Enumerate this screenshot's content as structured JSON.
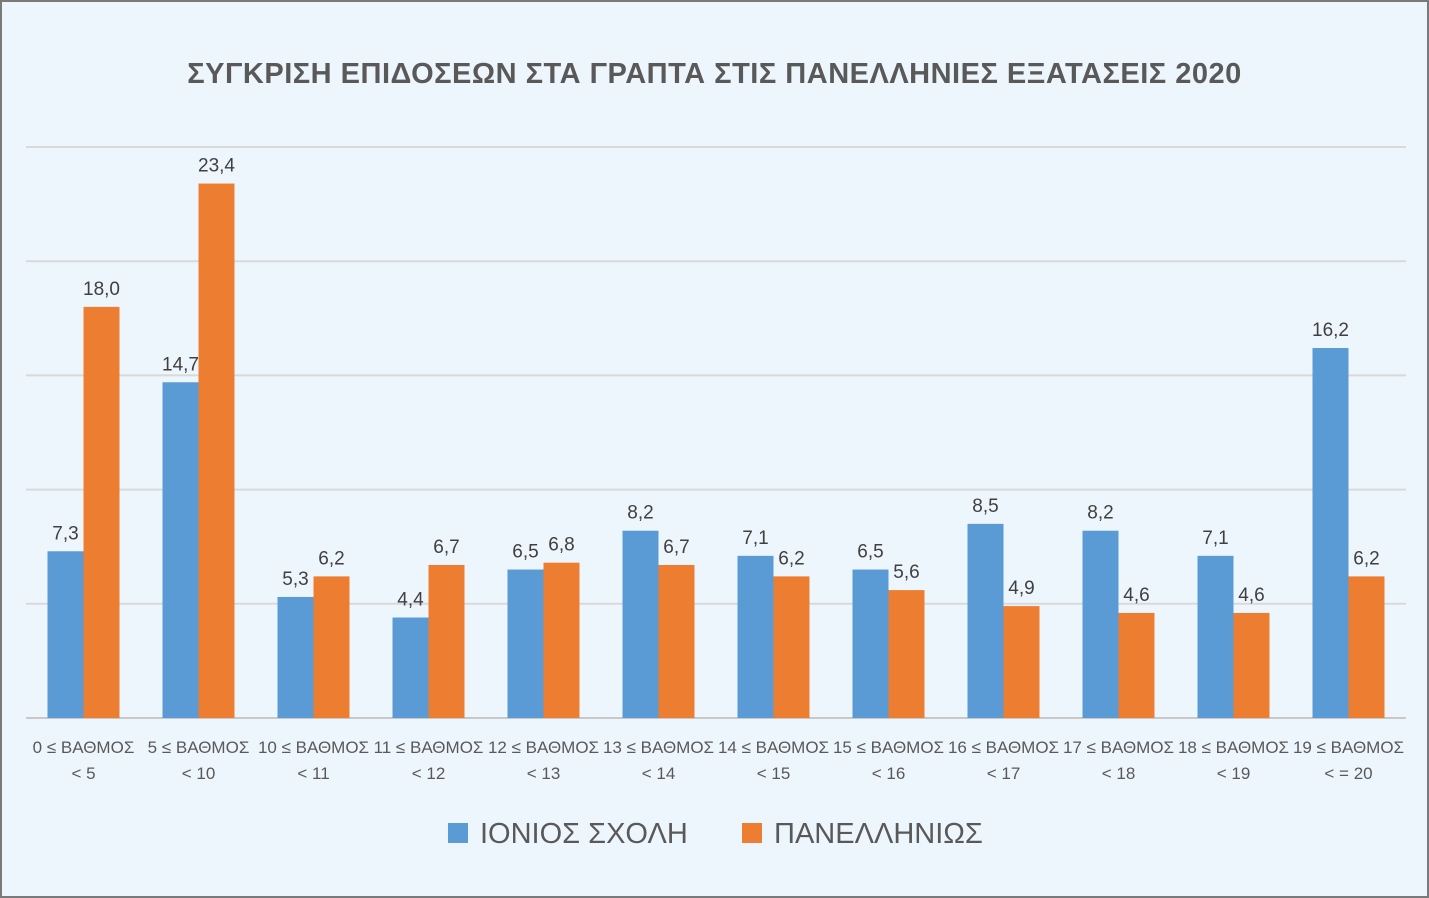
{
  "chart_data": {
    "type": "bar",
    "title": "ΣΥΓΚΡΙΣΗ ΕΠΙΔΟΣΕΩΝ ΣΤΑ ΓΡΑΠΤΑ ΣΤΙΣ ΠΑΝΕΛΛΗΝΙΕΣ ΕΞΑΤΑΣΕΙΣ 2020",
    "xlabel": "",
    "ylabel": "",
    "ylim": [
      0,
      25
    ],
    "grid": true,
    "legend": "bottom",
    "categories": [
      [
        "0 ≤ ΒΑΘΜΟΣ",
        "< 5"
      ],
      [
        "5 ≤ ΒΑΘΜΟΣ",
        "< 10"
      ],
      [
        "10 ≤ ΒΑΘΜΟΣ",
        "< 11"
      ],
      [
        "11 ≤ ΒΑΘΜΟΣ",
        "< 12"
      ],
      [
        "12 ≤ ΒΑΘΜΟΣ",
        "< 13"
      ],
      [
        "13 ≤ ΒΑΘΜΟΣ",
        "< 14"
      ],
      [
        "14 ≤ ΒΑΘΜΟΣ",
        "< 15"
      ],
      [
        "15 ≤ ΒΑΘΜΟΣ",
        "< 16"
      ],
      [
        "16 ≤ ΒΑΘΜΟΣ",
        "< 17"
      ],
      [
        "17 ≤ ΒΑΘΜΟΣ",
        "< 18"
      ],
      [
        "18 ≤ ΒΑΘΜΟΣ",
        "< 19"
      ],
      [
        "19 ≤ ΒΑΘΜΟΣ",
        "< = 20"
      ]
    ],
    "series": [
      {
        "name": "ΙΟΝΙΟΣ ΣΧΟΛΗ",
        "color": "#5b9bd5",
        "values": [
          7.3,
          14.7,
          5.3,
          4.4,
          6.5,
          8.2,
          7.1,
          6.5,
          8.5,
          8.2,
          7.1,
          16.2
        ],
        "labels": [
          "7,3",
          "14,7",
          "5,3",
          "4,4",
          "6,5",
          "8,2",
          "7,1",
          "6,5",
          "8,5",
          "8,2",
          "7,1",
          "16,2"
        ]
      },
      {
        "name": "ΠΑΝΕΛΛΗΝΙΩΣ",
        "color": "#ed7d31",
        "values": [
          18.0,
          23.4,
          6.2,
          6.7,
          6.8,
          6.7,
          6.2,
          5.6,
          4.9,
          4.6,
          4.6,
          6.2
        ],
        "labels": [
          "18,0",
          "23,4",
          "6,2",
          "6,7",
          "6,8",
          "6,7",
          "6,2",
          "5,6",
          "4,9",
          "4,6",
          "4,6",
          "6,2"
        ]
      }
    ]
  }
}
